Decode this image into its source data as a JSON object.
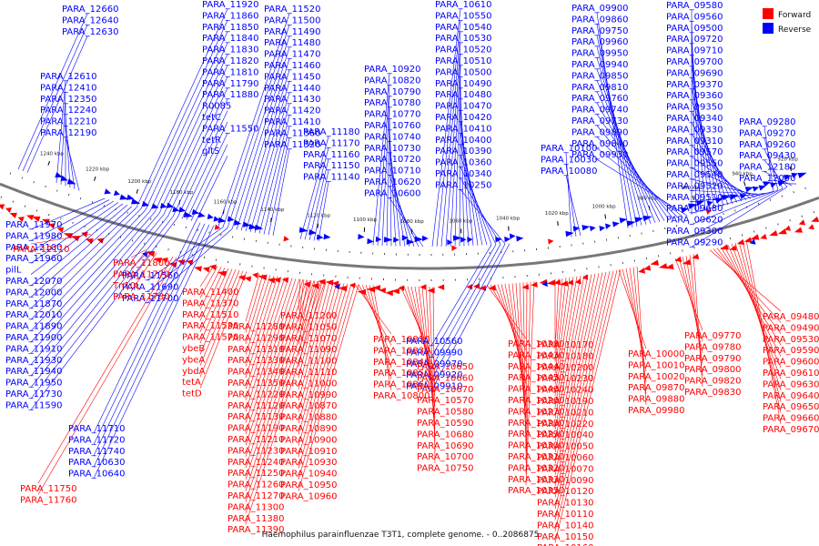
{
  "title": "Haemophilus parainfluenzae T3T1, complete genome. - 0..2086875",
  "legend": [
    {
      "label": "Forward",
      "color": "#ff0000"
    },
    {
      "label": "Reverse",
      "color": "#0000ff"
    }
  ],
  "scale_ticks": [
    "1240 kbp",
    "1220 kbp",
    "1200 kbp",
    "1180 kbp",
    "1160 kbp",
    "1140 kbp",
    "1120 kbp",
    "1100 kbp",
    "1080 kbp",
    "1060 kbp",
    "1040 kbp",
    "1020 kbp",
    "1000 kbp",
    "980 kbp",
    "960 kbp",
    "940 kbp",
    "920 kbp"
  ],
  "colors": {
    "forward": "#ff0000",
    "reverse": "#0000ff",
    "backbone": "#777777"
  },
  "reverse_labels": [
    "PARA_12660",
    "PARA_12640",
    "PARA_12630",
    "PARA_12610",
    "PARA_12410",
    "PARA_12350",
    "PARA_12240",
    "PARA_12210",
    "PARA_12190",
    "PARA_11920",
    "PARA_11860",
    "PARA_11850",
    "PARA_11840",
    "PARA_11830",
    "PARA_11820",
    "PARA_11810",
    "PARA_11790",
    "PARA_11880",
    "R0085",
    "tetC",
    "PARA_11550",
    "tetR",
    "gltS",
    "PARA_11520",
    "PARA_11500",
    "PARA_11490",
    "PARA_11480",
    "PARA_11470",
    "PARA_11460",
    "PARA_11450",
    "PARA_11440",
    "PARA_11430",
    "PARA_11420",
    "PARA_11410",
    "PARA_11360",
    "PARA_11320",
    "PARA_11180",
    "PARA_11170",
    "PARA_11160",
    "PARA_11150",
    "PARA_11140",
    "PARA_10920",
    "PARA_10820",
    "PARA_10790",
    "PARA_10780",
    "PARA_10770",
    "PARA_10760",
    "PARA_10740",
    "PARA_10730",
    "PARA_10720",
    "PARA_10710",
    "PARA_10620",
    "PARA_10600",
    "PARA_10610",
    "PARA_10550",
    "PARA_10540",
    "PARA_10530",
    "PARA_10520",
    "PARA_10510",
    "PARA_10500",
    "PARA_10490",
    "PARA_10480",
    "PARA_10470",
    "PARA_10420",
    "PARA_10410",
    "PARA_10400",
    "PARA_10390",
    "PARA_10360",
    "PARA_10340",
    "PARA_10250",
    "PARA_10100",
    "PARA_10030",
    "PARA_10080",
    "PARA_09900",
    "PARA_09860",
    "PARA_09750",
    "PARA_09960",
    "PARA_09950",
    "PARA_09940",
    "PARA_09850",
    "PARA_09810",
    "PARA_09760",
    "PARA_09740",
    "PARA_09730",
    "PARA_09890",
    "PARA_09840",
    "PARA_09930",
    "PARA_09580",
    "PARA_09560",
    "PARA_09500",
    "PARA_09720",
    "PARA_09710",
    "PARA_09700",
    "PARA_09690",
    "PARA_09370",
    "PARA_09360",
    "PARA_09350",
    "PARA_09340",
    "PARA_09330",
    "PARA_09310",
    "PARA_09570",
    "PARA_09550",
    "PARA_09540",
    "PARA_09520",
    "PARA_09510",
    "PARA_09680",
    "PARA_09620",
    "PARA_09300",
    "PARA_09290",
    "PARA_09280",
    "PARA_09270",
    "PARA_09260",
    "PARA_09430",
    "PARA_12180",
    "PARA_12090",
    "PARA_11970",
    "PARA_11980",
    "PARA_12100",
    "PARA_11960",
    "pilL",
    "PARA_12070",
    "PARA_12000",
    "PARA_11870",
    "PARA_12010",
    "PARA_11890",
    "PARA_11900",
    "PARA_11910",
    "PARA_11930",
    "PARA_11940",
    "PARA_11950",
    "PARA_11730",
    "PARA_11590",
    "PARA_11560",
    "PARA_11690",
    "PARA_11700",
    "PARA_11710",
    "PARA_11720",
    "PARA_11740",
    "PARA_10630",
    "PARA_10640",
    "PARA_10560",
    "PARA_09990",
    "PARA_09970",
    "PARA_09920",
    "PARA_09910"
  ],
  "forward_labels": [
    "PARA_12110",
    "PARA_11800",
    "PARA_11770",
    "Tn10L",
    "PARA_11780",
    "PARA_11400",
    "PARA_11370",
    "PARA_11510",
    "PARA_11530",
    "PARA_11570",
    "ybeB",
    "ybeA",
    "ybdA",
    "tetA",
    "tetD",
    "PARA_11280",
    "PARA_11290",
    "PARA_11310",
    "PARA_11330",
    "PARA_11340",
    "PARA_11350",
    "PARA_11220",
    "PARA_11120",
    "PARA_11130",
    "PARA_11190",
    "PARA_11210",
    "PARA_11230",
    "PARA_11240",
    "PARA_11250",
    "PARA_11260",
    "PARA_11270",
    "PARA_11300",
    "PARA_11380",
    "PARA_11390",
    "PARA_11200",
    "PARA_11050",
    "PARA_11070",
    "PARA_11090",
    "PARA_11100",
    "PARA_11110",
    "PARA_11000",
    "PARA_10990",
    "PARA_10870",
    "PARA_10880",
    "PARA_10890",
    "PARA_10900",
    "PARA_10910",
    "PARA_10930",
    "PARA_10940",
    "PARA_10950",
    "PARA_10960",
    "PARA_10810",
    "PARA_10830",
    "PARA_10840",
    "PARA_10850",
    "PARA_10860",
    "PARA_10800",
    "PARA_10650",
    "PARA_10660",
    "PARA_10670",
    "PARA_10570",
    "PARA_10580",
    "PARA_10590",
    "PARA_10680",
    "PARA_10690",
    "PARA_10700",
    "PARA_10750",
    "PARA_10380",
    "PARA_10430",
    "PARA_10440",
    "PARA_10450",
    "PARA_10460",
    "PARA_10260",
    "PARA_10270",
    "PARA_10280",
    "PARA_10290",
    "PARA_10300",
    "PARA_10310",
    "PARA_10320",
    "PARA_10330",
    "PARA_10350",
    "PARA_10170",
    "PARA_10180",
    "PARA_10200",
    "PARA_10230",
    "PARA_10240",
    "PARA_10190",
    "PARA_10210",
    "PARA_10220",
    "PARA_10040",
    "PARA_10050",
    "PARA_10060",
    "PARA_10070",
    "PARA_10090",
    "PARA_10120",
    "PARA_10130",
    "PARA_10110",
    "PARA_10140",
    "PARA_10150",
    "PARA_10160",
    "PARA_10000",
    "PARA_10010",
    "PARA_10020",
    "PARA_09870",
    "PARA_09880",
    "PARA_09980",
    "PARA_09770",
    "PARA_09780",
    "PARA_09790",
    "PARA_09800",
    "PARA_09820",
    "PARA_09830",
    "PARA_09480",
    "PARA_09490",
    "PARA_09530",
    "PARA_09590",
    "PARA_09600",
    "PARA_09610",
    "PARA_09630",
    "PARA_09640",
    "PARA_09650",
    "PARA_09660",
    "PARA_09670",
    "PARA_11750",
    "PARA_11760"
  ]
}
